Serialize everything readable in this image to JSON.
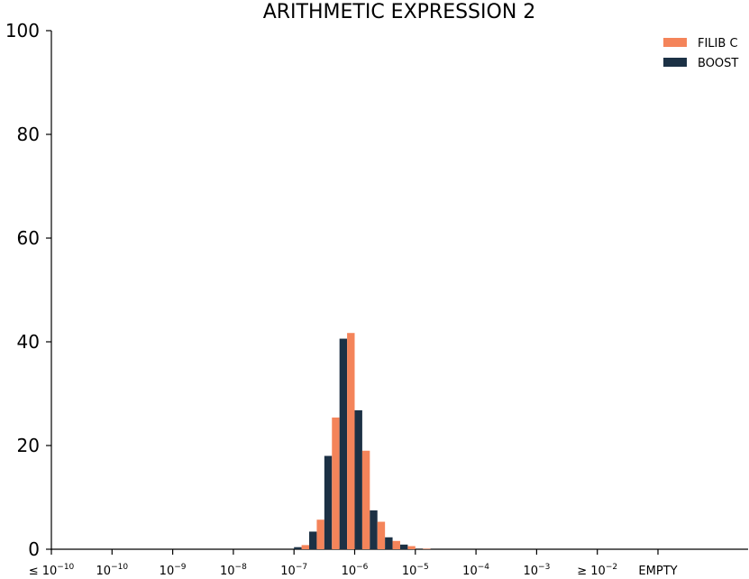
{
  "chart_data": {
    "type": "bar",
    "title": "ARITHMETIC EXPRESSION 2",
    "xlabel": "",
    "ylabel": "",
    "ylim": [
      0,
      100
    ],
    "yticks": [
      0,
      20,
      40,
      60,
      80,
      100
    ],
    "xtick_labels": [
      {
        "base": "≤ 10",
        "exp": "−10"
      },
      {
        "base": "10",
        "exp": "−10"
      },
      {
        "base": "10",
        "exp": "−9"
      },
      {
        "base": "10",
        "exp": "−8"
      },
      {
        "base": "10",
        "exp": "−7"
      },
      {
        "base": "10",
        "exp": "−6"
      },
      {
        "base": "10",
        "exp": "−5"
      },
      {
        "base": "10",
        "exp": "−4"
      },
      {
        "base": "10",
        "exp": "−3"
      },
      {
        "base": "≥ 10",
        "exp": "−2"
      },
      {
        "base": "EMPTY",
        "exp": ""
      }
    ],
    "bins_per_decade": 4,
    "bin_start_decade": -7,
    "legend_position": "top-right",
    "grid": false,
    "series": [
      {
        "name": "FILIB C",
        "color": "#f4845a",
        "values": [
          0.8,
          5.7,
          25.4,
          41.7,
          19.0,
          5.3,
          1.6,
          0.6,
          0.1
        ]
      },
      {
        "name": "BOOST",
        "color": "#1c3145",
        "values": [
          0.4,
          3.4,
          18.0,
          40.6,
          26.8,
          7.5,
          2.3,
          0.9,
          0.0
        ]
      }
    ]
  }
}
